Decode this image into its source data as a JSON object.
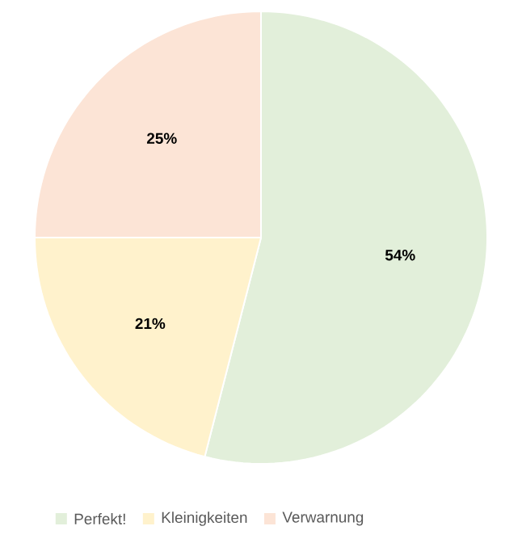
{
  "chart_data": {
    "type": "pie",
    "categories": [
      "Perfekt!",
      "Kleinigkeiten",
      "Verwarnung"
    ],
    "values": [
      54,
      21,
      25
    ],
    "value_labels": [
      "54%",
      "21%",
      "25%"
    ],
    "colors": [
      "#e2efda",
      "#fff2cc",
      "#fce4d6"
    ],
    "legend": "bottom"
  }
}
